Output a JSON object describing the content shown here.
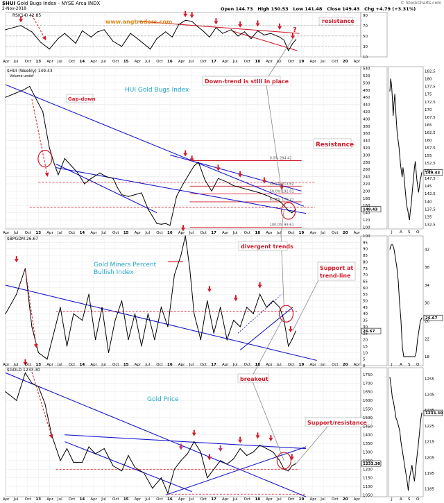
{
  "header": {
    "symbol": "$HUI",
    "name": "Gold Bugs Index - NYSE Arca INDX",
    "date": "2-Nov-2018",
    "open_label": "Open",
    "open": "144.73",
    "high_label": "High",
    "high": "150.53",
    "low_label": "Low",
    "low": "141.48",
    "close_label": "Close",
    "close": "149.43",
    "chg_label": "Chg",
    "chg": "+4.79 (+3.31%)",
    "credit": "© StockCharts.com"
  },
  "panels": {
    "rsi": {
      "label": "RSI(14) 42.85",
      "watermark": "www.angtraders.com",
      "resistance_note": "resistance",
      "question_mark": "?"
    },
    "hui": {
      "label": "$HUI (Weekly) 149.43",
      "volume_label": "Volume undef",
      "title": "HUI Gold Bugs Index",
      "gap_down": "Gap-down",
      "downtrend": "Down-trend is still in place",
      "resistance": "Resistance",
      "fib": [
        {
          "text": "0.0% 284.42"
        },
        {
          "text": "38.2% 213.62"
        },
        {
          "text": "50.0% 192.01"
        },
        {
          "text": "61.8% 170.21"
        },
        {
          "text": "100.0% 99.61"
        }
      ],
      "last_price": "149.43"
    },
    "bpgdm": {
      "label": "$BPGDM 26.67",
      "title_line1": "Gold Miners Percent",
      "title_line2": "Bullish Index",
      "divergent": "divergent trends",
      "support_line1": "Support at",
      "support_line2": "trend-line",
      "last_price": "26.67"
    },
    "gold": {
      "label": "$GOLD 1233.30",
      "title": "Gold Price",
      "breakout": "breakout",
      "support_resistance": "Support/resistance",
      "last_price": "1233.30"
    }
  },
  "colors": {
    "annotation_red": "#d11a2a",
    "trend_blue": "#1a1acc",
    "title_cyan": "#1fa6c8",
    "arrow_pink": "#c2307a",
    "watermark_orange": "#e08a1e"
  },
  "chart_data": [
    {
      "type": "line",
      "title": "RSI(14)",
      "x_ticks": [
        "Apr",
        "Jul",
        "Oct",
        "13",
        "Apr",
        "Jul",
        "Oct",
        "14",
        "Apr",
        "Jul",
        "Oct",
        "15",
        "Apr",
        "Jul",
        "Oct",
        "16",
        "Apr",
        "Jul",
        "Oct",
        "17",
        "Apr",
        "Jul",
        "Oct",
        "18",
        "Apr",
        "Jul",
        "Oct",
        "19",
        "Apr",
        "Jul",
        "Oct",
        "20",
        "Apr"
      ],
      "y_ticks": [
        10,
        30,
        50,
        70,
        90
      ],
      "ylim": [
        10,
        95
      ],
      "x": [
        2012.25,
        2012.6,
        2012.85,
        2013.05,
        2013.25,
        2013.45,
        2013.6,
        2013.85,
        2014.0,
        2014.2,
        2014.35,
        2014.5,
        2014.7,
        2014.9,
        2015.1,
        2015.3,
        2015.55,
        2015.7,
        2015.9,
        2016.05,
        2016.2,
        2016.35,
        2016.5,
        2016.6,
        2016.75,
        2016.9,
        2017.05,
        2017.2,
        2017.4,
        2017.55,
        2017.7,
        2017.85,
        2018.0,
        2018.15,
        2018.3,
        2018.5,
        2018.6,
        2018.7,
        2018.8,
        2018.87
      ],
      "series": [
        {
          "values": [
            62,
            70,
            58,
            38,
            25,
            45,
            55,
            36,
            60,
            48,
            58,
            62,
            40,
            30,
            55,
            42,
            25,
            45,
            58,
            48,
            72,
            80,
            78,
            70,
            60,
            48,
            66,
            55,
            62,
            50,
            58,
            45,
            60,
            52,
            55,
            48,
            42,
            22,
            36,
            43
          ]
        }
      ]
    },
    {
      "type": "line",
      "title": "$HUI (Weekly)",
      "y_ticks": [
        100,
        120,
        140,
        160,
        180,
        200,
        220,
        240,
        260,
        280,
        300,
        320,
        340,
        360,
        380,
        400,
        420,
        440,
        460,
        480,
        500,
        520,
        540
      ],
      "ylim": [
        95,
        545
      ],
      "x": [
        2012.25,
        2012.45,
        2012.65,
        2012.8,
        2012.95,
        2013.1,
        2013.25,
        2013.35,
        2013.45,
        2013.6,
        2013.75,
        2013.9,
        2014.05,
        2014.2,
        2014.4,
        2014.55,
        2014.7,
        2014.8,
        2014.9,
        2015.05,
        2015.2,
        2015.35,
        2015.5,
        2015.6,
        2015.7,
        2015.8,
        2015.9,
        2016.0,
        2016.15,
        2016.3,
        2016.45,
        2016.55,
        2016.65,
        2016.8,
        2016.95,
        2017.1,
        2017.3,
        2017.45,
        2017.6,
        2017.75,
        2017.9,
        2018.05,
        2018.2,
        2018.35,
        2018.5,
        2018.6,
        2018.7,
        2018.78,
        2018.87
      ],
      "series": [
        {
          "values": [
            460,
            470,
            480,
            490,
            455,
            420,
            320,
            280,
            245,
            290,
            270,
            250,
            220,
            235,
            250,
            240,
            235,
            210,
            190,
            185,
            190,
            195,
            150,
            130,
            110,
            108,
            110,
            105,
            185,
            220,
            250,
            270,
            280,
            230,
            200,
            235,
            225,
            215,
            210,
            205,
            200,
            195,
            188,
            180,
            172,
            160,
            146,
            140,
            149.43
          ]
        }
      ],
      "fib_levels": [
        {
          "pct": "0.0%",
          "value": 284.42
        },
        {
          "pct": "38.2%",
          "value": 213.62
        },
        {
          "pct": "50.0%",
          "value": 192.01
        },
        {
          "pct": "61.8%",
          "value": 170.21
        },
        {
          "pct": "100.0%",
          "value": 99.61
        }
      ]
    },
    {
      "type": "line",
      "title": "$BPGDM",
      "y_ticks": [
        0,
        5,
        10,
        15,
        20,
        25,
        30,
        35,
        40,
        45,
        50,
        55,
        60,
        65,
        70,
        75,
        80,
        85,
        90,
        95,
        100
      ],
      "ylim": [
        0,
        100
      ],
      "x": [
        2012.25,
        2012.5,
        2012.7,
        2012.85,
        2013.0,
        2013.2,
        2013.35,
        2013.5,
        2013.65,
        2013.8,
        2014.0,
        2014.15,
        2014.3,
        2014.45,
        2014.6,
        2014.75,
        2014.9,
        2015.05,
        2015.2,
        2015.35,
        2015.5,
        2015.65,
        2015.8,
        2015.95,
        2016.1,
        2016.25,
        2016.35,
        2016.45,
        2016.55,
        2016.7,
        2016.85,
        2017.0,
        2017.15,
        2017.3,
        2017.45,
        2017.6,
        2017.75,
        2017.9,
        2018.05,
        2018.2,
        2018.35,
        2018.5,
        2018.6,
        2018.7,
        2018.78,
        2018.87
      ],
      "series": [
        {
          "values": [
            40,
            55,
            75,
            30,
            10,
            5,
            25,
            45,
            15,
            40,
            35,
            55,
            20,
            45,
            10,
            35,
            50,
            20,
            40,
            15,
            40,
            20,
            45,
            30,
            70,
            85,
            100,
            75,
            40,
            20,
            50,
            25,
            45,
            20,
            35,
            30,
            45,
            40,
            55,
            45,
            50,
            45,
            35,
            15,
            20,
            26.67
          ]
        }
      ]
    },
    {
      "type": "line",
      "title": "$GOLD",
      "y_ticks": [
        1050,
        1100,
        1150,
        1200,
        1250,
        1300,
        1350,
        1400,
        1450,
        1500,
        1550,
        1600,
        1650,
        1700,
        1750
      ],
      "ylim": [
        1040,
        1790
      ],
      "x": [
        2012.25,
        2012.5,
        2012.7,
        2012.85,
        2013.0,
        2013.15,
        2013.3,
        2013.5,
        2013.65,
        2013.8,
        2014.0,
        2014.15,
        2014.3,
        2014.5,
        2014.7,
        2014.9,
        2015.05,
        2015.2,
        2015.4,
        2015.6,
        2015.8,
        2015.95,
        2016.1,
        2016.25,
        2016.4,
        2016.55,
        2016.7,
        2016.85,
        2017.0,
        2017.15,
        2017.3,
        2017.45,
        2017.6,
        2017.75,
        2017.9,
        2018.05,
        2018.2,
        2018.35,
        2018.5,
        2018.6,
        2018.7,
        2018.78,
        2018.87
      ],
      "series": [
        {
          "values": [
            1650,
            1600,
            1760,
            1700,
            1680,
            1580,
            1400,
            1250,
            1320,
            1240,
            1240,
            1330,
            1290,
            1320,
            1220,
            1190,
            1280,
            1210,
            1180,
            1090,
            1150,
            1060,
            1200,
            1250,
            1290,
            1360,
            1300,
            1150,
            1200,
            1250,
            1230,
            1260,
            1320,
            1280,
            1300,
            1340,
            1320,
            1300,
            1250,
            1200,
            1190,
            1220,
            1233.3
          ]
        }
      ]
    },
    {
      "type": "line",
      "title": "$HUI daily (right)",
      "x_ticks": [
        "J",
        "A",
        "S",
        "O"
      ],
      "y_ticks": [
        132.5,
        135.0,
        137.5,
        140.0,
        142.5,
        145.0,
        147.5,
        150.0,
        152.5,
        155.0,
        157.5,
        160.0,
        162.5,
        165.0,
        167.5,
        170.0,
        172.5,
        175.0,
        177.5,
        180.0,
        182.5
      ],
      "ylim": [
        131,
        184
      ],
      "x": [
        0,
        1,
        2,
        3,
        4,
        5,
        6,
        7,
        8,
        9,
        10,
        11,
        12,
        13,
        14,
        15,
        16,
        17,
        18,
        19,
        20,
        21,
        22,
        23,
        24,
        25,
        26,
        27,
        28,
        29,
        30,
        31,
        32,
        33,
        34,
        35,
        36,
        37,
        38,
        39
      ],
      "series": [
        {
          "values": [
            176,
            180,
            178,
            174,
            168,
            172,
            175,
            170,
            166,
            162,
            160,
            158,
            155,
            152,
            150,
            148,
            151,
            149,
            146,
            143,
            140,
            138,
            137,
            135,
            134,
            137,
            139,
            142,
            145,
            148,
            151,
            153,
            150,
            147,
            145,
            143,
            145,
            147,
            148,
            149.43
          ]
        }
      ]
    },
    {
      "type": "line",
      "title": "$BPGDM daily (right)",
      "y_ticks": [
        18,
        22,
        26,
        30,
        34,
        38,
        42
      ],
      "ylim": [
        16,
        45
      ],
      "series": [
        {
          "values": [
            42,
            43,
            43,
            42,
            40,
            38,
            35,
            30,
            26,
            20,
            18,
            18,
            18,
            18,
            18,
            18,
            18,
            18,
            18,
            19,
            22,
            24,
            26,
            26.67
          ]
        }
      ]
    },
    {
      "type": "line",
      "title": "$GOLD daily (right)",
      "y_ticks": [
        1185,
        1195,
        1205,
        1215,
        1225,
        1235,
        1245,
        1255
      ],
      "ylim": [
        1180,
        1262
      ],
      "series": [
        {
          "values": [
            1256,
            1250,
            1243,
            1240,
            1235,
            1230,
            1228,
            1225,
            1222,
            1215,
            1210,
            1205,
            1200,
            1195,
            1190,
            1184,
            1192,
            1196,
            1200,
            1194,
            1190,
            1198,
            1205,
            1212,
            1220,
            1228,
            1233.3
          ]
        }
      ]
    }
  ]
}
